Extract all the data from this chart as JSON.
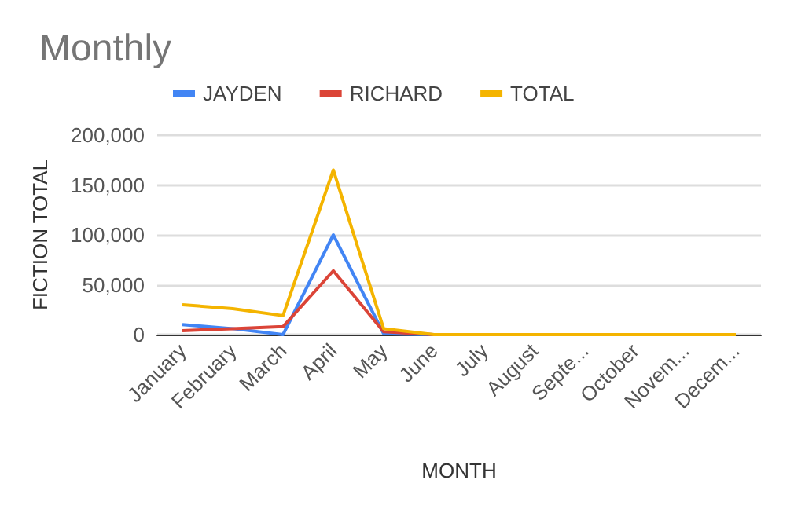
{
  "chart_data": {
    "type": "line",
    "title": "Monthly",
    "xlabel": "MONTH",
    "ylabel": "FICTION TOTAL",
    "categories": [
      "January",
      "February",
      "March",
      "April",
      "May",
      "June",
      "July",
      "August",
      "Septe...",
      "October",
      "Novem...",
      "Decem..."
    ],
    "series": [
      {
        "name": "JAYDEN",
        "color": "#4285f4",
        "values": [
          10000,
          6000,
          0,
          100000,
          1000,
          0,
          null,
          null,
          null,
          null,
          null,
          null
        ]
      },
      {
        "name": "RICHARD",
        "color": "#db4437",
        "values": [
          4000,
          6000,
          8000,
          64000,
          3000,
          0,
          null,
          null,
          null,
          null,
          null,
          null
        ]
      },
      {
        "name": "TOTAL",
        "color": "#f4b400",
        "values": [
          30000,
          26000,
          19000,
          165000,
          6000,
          0,
          0,
          0,
          0,
          0,
          0,
          0
        ]
      }
    ],
    "ylim": [
      0,
      200000
    ],
    "yticks": [
      {
        "value": 0,
        "label": "0"
      },
      {
        "value": 50000,
        "label": "50,000"
      },
      {
        "value": 100000,
        "label": "100,000"
      },
      {
        "value": 150000,
        "label": "150,000"
      },
      {
        "value": 200000,
        "label": "200,000"
      }
    ],
    "grid": "y",
    "legend": "top left",
    "marker": "none",
    "line_style": "solid"
  }
}
